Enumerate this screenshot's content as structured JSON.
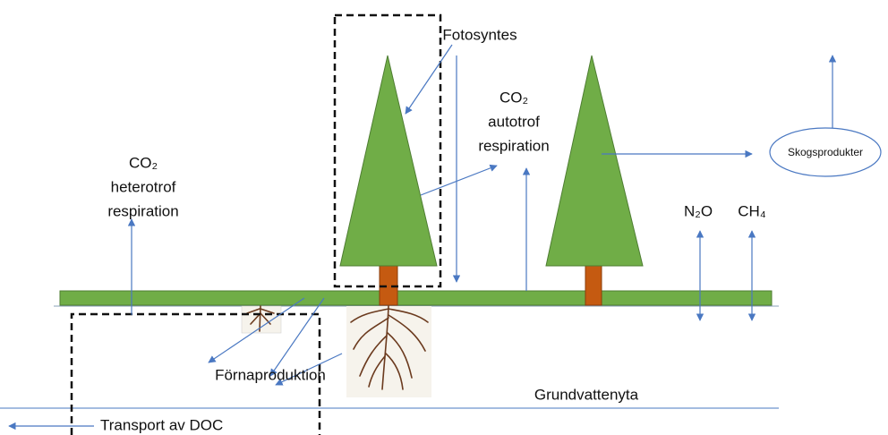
{
  "labels": {
    "photosynthesis": "Fotosyntes",
    "autotrophic": [
      "CO₂",
      "autotrof",
      "respiration"
    ],
    "heterotrophic": [
      "CO₂",
      "heterotrof",
      "respiration"
    ],
    "forest_products": "Skogsprodukter",
    "n2o": "N₂O",
    "ch4": "CH₄",
    "litter": "Förnaproduktion",
    "groundwater": "Grundvattenyta",
    "doc": "Transport av DOC"
  }
}
